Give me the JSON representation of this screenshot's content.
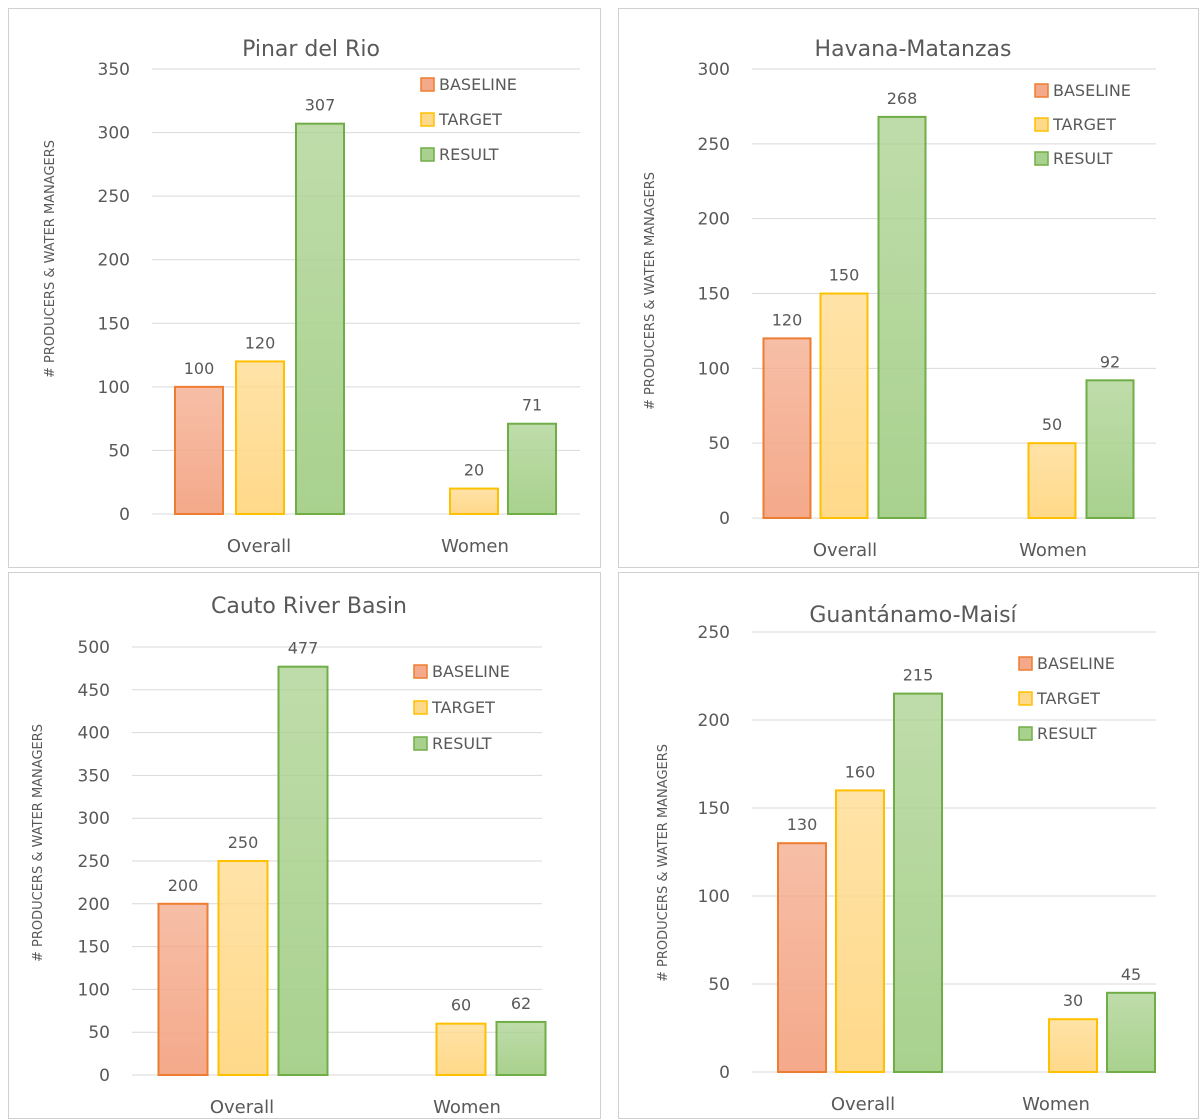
{
  "colors": {
    "baseline_fill": "#f4a98a",
    "baseline_stroke": "#ed7d31",
    "target_fill": "#ffd98a",
    "target_stroke": "#ffc000",
    "result_fill": "#a9d18e",
    "result_stroke": "#70ad47",
    "grid": "#d9d9d9",
    "text": "#595959"
  },
  "chart_data": [
    {
      "type": "bar",
      "title": "Pinar del Rio",
      "ylabel": "# PRODUCERS & WATER MANAGERS",
      "categories": [
        "Overall",
        "Women"
      ],
      "ylim": [
        0,
        350
      ],
      "yticks": [
        0,
        50,
        100,
        150,
        200,
        250,
        300,
        350
      ],
      "series": [
        {
          "name": "BASELINE",
          "values": [
            100,
            null
          ]
        },
        {
          "name": "TARGET",
          "values": [
            120,
            20
          ]
        },
        {
          "name": "RESULT",
          "values": [
            307,
            71
          ]
        }
      ],
      "legend": "top-right",
      "grid": true
    },
    {
      "type": "bar",
      "title": "Havana-Matanzas",
      "ylabel": "# PRODUCERS & WATER MANAGERS",
      "categories": [
        "Overall",
        "Women"
      ],
      "ylim": [
        0,
        300
      ],
      "yticks": [
        0,
        50,
        100,
        150,
        200,
        250,
        300
      ],
      "series": [
        {
          "name": "BASELINE",
          "values": [
            120,
            null
          ]
        },
        {
          "name": "TARGET",
          "values": [
            150,
            50
          ]
        },
        {
          "name": "RESULT",
          "values": [
            268,
            92
          ]
        }
      ],
      "legend": "top-right",
      "grid": true
    },
    {
      "type": "bar",
      "title": "Cauto River Basin",
      "ylabel": "# PRODUCERS & WATER MANAGERS",
      "categories": [
        "Overall",
        "Women"
      ],
      "ylim": [
        0,
        500
      ],
      "yticks": [
        0,
        50,
        100,
        150,
        200,
        250,
        300,
        350,
        400,
        450,
        500
      ],
      "series": [
        {
          "name": "BASELINE",
          "values": [
            200,
            null
          ]
        },
        {
          "name": "TARGET",
          "values": [
            250,
            60
          ]
        },
        {
          "name": "RESULT",
          "values": [
            477,
            62
          ]
        }
      ],
      "legend": "top-right",
      "grid": true
    },
    {
      "type": "bar",
      "title": "Guantánamo-Maisí",
      "ylabel": "# PRODUCERS & WATER MANAGERS",
      "categories": [
        "Overall",
        "Women"
      ],
      "ylim": [
        0,
        250
      ],
      "yticks": [
        0,
        50,
        100,
        150,
        200,
        250
      ],
      "series": [
        {
          "name": "BASELINE",
          "values": [
            130,
            null
          ]
        },
        {
          "name": "TARGET",
          "values": [
            160,
            30
          ]
        },
        {
          "name": "RESULT",
          "values": [
            215,
            45
          ]
        }
      ],
      "legend": "top-right",
      "grid": true
    }
  ]
}
